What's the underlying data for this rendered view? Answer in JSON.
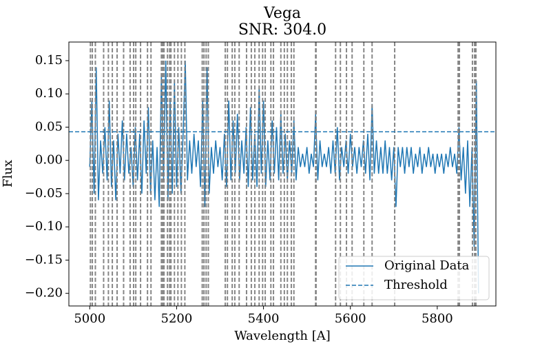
{
  "chart_data": {
    "type": "line",
    "title": "Vega",
    "subtitle": "SNR: 304.0",
    "xlabel": "Wavelength [A]",
    "ylabel": "Flux",
    "xlim": [
      4952,
      5935
    ],
    "ylim": [
      -0.219,
      0.178
    ],
    "xticks": [
      5000,
      5200,
      5400,
      5600,
      5800
    ],
    "yticks": [
      {
        "value": -0.2,
        "label": "−0.20"
      },
      {
        "value": -0.15,
        "label": "−0.15"
      },
      {
        "value": -0.1,
        "label": "−0.10"
      },
      {
        "value": -0.05,
        "label": "−0.05"
      },
      {
        "value": 0,
        "label": "0.00"
      },
      {
        "value": 0.05,
        "label": "0.05"
      },
      {
        "value": 0.1,
        "label": "0.10"
      },
      {
        "value": 0.15,
        "label": "0.15"
      }
    ],
    "legend": "lower right",
    "x": [
      5000,
      5005,
      5010,
      5015,
      5020,
      5025,
      5030,
      5035,
      5040,
      5045,
      5050,
      5055,
      5060,
      5065,
      5070,
      5075,
      5080,
      5085,
      5090,
      5095,
      5100,
      5105,
      5110,
      5115,
      5120,
      5125,
      5130,
      5135,
      5140,
      5145,
      5150,
      5155,
      5160,
      5165,
      5170,
      5175,
      5180,
      5185,
      5190,
      5195,
      5200,
      5205,
      5210,
      5215,
      5220,
      5225,
      5230,
      5235,
      5240,
      5245,
      5250,
      5255,
      5260,
      5265,
      5270,
      5275,
      5280,
      5285,
      5290,
      5295,
      5300,
      5305,
      5310,
      5315,
      5320,
      5325,
      5330,
      5335,
      5340,
      5345,
      5350,
      5355,
      5360,
      5365,
      5370,
      5375,
      5380,
      5385,
      5390,
      5395,
      5400,
      5405,
      5410,
      5415,
      5420,
      5425,
      5430,
      5435,
      5440,
      5445,
      5450,
      5455,
      5460,
      5465,
      5470,
      5475,
      5480,
      5485,
      5490,
      5495,
      5500,
      5505,
      5510,
      5515,
      5520,
      5525,
      5530,
      5535,
      5540,
      5545,
      5550,
      5555,
      5560,
      5565,
      5570,
      5575,
      5580,
      5585,
      5590,
      5595,
      5600,
      5605,
      5610,
      5615,
      5620,
      5625,
      5630,
      5635,
      5640,
      5645,
      5650,
      5655,
      5660,
      5665,
      5670,
      5675,
      5680,
      5685,
      5690,
      5695,
      5700,
      5705,
      5710,
      5715,
      5720,
      5725,
      5730,
      5735,
      5740,
      5745,
      5750,
      5755,
      5760,
      5765,
      5770,
      5775,
      5780,
      5785,
      5790,
      5795,
      5800,
      5805,
      5810,
      5815,
      5820,
      5825,
      5830,
      5835,
      5840,
      5845,
      5850,
      5855,
      5860,
      5865,
      5870,
      5875,
      5880,
      5885,
      5890,
      5895
    ],
    "series": [
      {
        "name": "Original Data",
        "color": "#1f77b4",
        "values": [
          -0.01,
          0.09,
          -0.05,
          0.14,
          -0.06,
          0.03,
          -0.02,
          0.05,
          -0.03,
          0.09,
          -0.04,
          0.03,
          -0.06,
          0.04,
          -0.02,
          0.06,
          -0.03,
          0.04,
          -0.02,
          0.02,
          -0.04,
          0.05,
          -0.03,
          0.04,
          -0.05,
          0.06,
          -0.02,
          0.08,
          -0.05,
          0.03,
          -0.06,
          0.02,
          -0.07,
          0.13,
          -0.03,
          0.15,
          -0.06,
          0.09,
          -0.05,
          0.12,
          -0.04,
          0.05,
          -0.05,
          0.04,
          0.15,
          -0.03,
          0.03,
          -0.02,
          0.04,
          -0.01,
          0.03,
          -0.04,
          0.09,
          -0.07,
          0.14,
          -0.05,
          0.02,
          -0.02,
          0.03,
          -0.01,
          0.02,
          -0.03,
          0.04,
          -0.04,
          0.09,
          -0.03,
          0.06,
          -0.02,
          0.07,
          -0.03,
          0.03,
          -0.02,
          0.05,
          -0.04,
          0.08,
          -0.03,
          0.04,
          -0.04,
          0.11,
          -0.02,
          0.09,
          -0.04,
          0.03,
          -0.03,
          0.06,
          -0.02,
          0.05,
          -0.03,
          0.07,
          -0.02,
          0.04,
          -0.03,
          0.03,
          -0.02,
          0.06,
          -0.03,
          0.02,
          -0.01,
          0.01,
          -0.01,
          0.02,
          -0.02,
          0.01,
          -0.01,
          0.07,
          -0.03,
          0.03,
          -0.01,
          0.01,
          -0.01,
          0.02,
          -0.02,
          0.03,
          -0.02,
          0.05,
          -0.03,
          0.02,
          -0.01,
          0.03,
          -0.02,
          0.04,
          -0.01,
          0.02,
          -0.02,
          0.02,
          -0.01,
          0.03,
          -0.02,
          0.04,
          -0.03,
          0.085,
          -0.02,
          0.03,
          -0.02,
          0.02,
          -0.02,
          0.03,
          -0.02,
          0.02,
          -0.03,
          0.02,
          -0.07,
          0.02,
          -0.01,
          0.02,
          -0.02,
          0.02,
          -0.01,
          0.02,
          -0.02,
          0.01,
          -0.01,
          0.02,
          -0.02,
          0.01,
          -0.01,
          0.02,
          -0.01,
          0.01,
          -0.02,
          0.01,
          -0.01,
          0.01,
          -0.02,
          0.01,
          -0.01,
          0.02,
          -0.01,
          0.01,
          -0.02,
          0.05,
          -0.03,
          0.02,
          -0.05,
          0.03,
          -0.07,
          0.02,
          -0.13,
          0.12,
          -0.2
        ]
      }
    ],
    "threshold": {
      "name": "Threshold",
      "value": 0.043,
      "color": "#1f77b4"
    },
    "vlines": {
      "color": "#808080",
      "x": [
        5001.6,
        5006,
        5013,
        5032,
        5043,
        5052,
        5063,
        5078,
        5093,
        5101,
        5106,
        5117,
        5133,
        5141,
        5165,
        5168,
        5171,
        5179,
        5184,
        5187,
        5195,
        5203,
        5211,
        5219,
        5259,
        5263,
        5268,
        5273,
        5312,
        5317,
        5328,
        5334,
        5344,
        5361,
        5372,
        5380,
        5390,
        5398,
        5404,
        5417,
        5423,
        5440,
        5448,
        5455,
        5464,
        5470,
        5520,
        5521,
        5566,
        5577,
        5591,
        5604,
        5631,
        5650,
        5702,
        5848,
        5851,
        5881,
        5886,
        5889
      ]
    }
  }
}
